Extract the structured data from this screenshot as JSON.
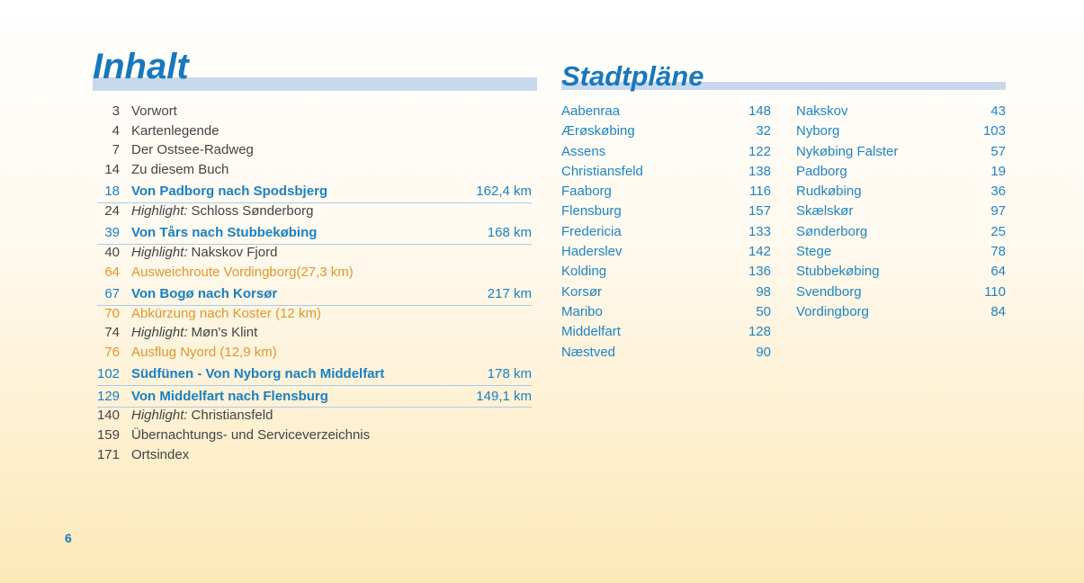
{
  "inhalt": {
    "title": "Inhalt",
    "entries": [
      {
        "page": 3,
        "text": "Vorwort"
      },
      {
        "page": 4,
        "text": "Kartenlegende"
      },
      {
        "page": 7,
        "text": "Der Ostsee-Radweg"
      },
      {
        "page": 14,
        "text": "Zu diesem Buch"
      },
      {
        "page": 18,
        "text": "Von Padborg nach Spodsbjerg",
        "distance": "162,4 km"
      },
      {
        "page": 24,
        "label": "Highlight:",
        "text": "Schloss Sønderborg"
      },
      {
        "page": 39,
        "text": "Von Tårs nach Stubbekøbing",
        "distance": "168 km"
      },
      {
        "page": 40,
        "label": "Highlight:",
        "text": "Nakskov Fjord"
      },
      {
        "page": 64,
        "text": "Ausweichroute Vordingborg(27,3 km)",
        "color": "#e0962c"
      },
      {
        "page": 67,
        "text": "Von Bogø nach Korsør",
        "distance": "217 km"
      },
      {
        "page": 70,
        "text": "Abkürzung nach Koster (12 km)",
        "color": "#e0962c"
      },
      {
        "page": 74,
        "label": "Highlight:",
        "text": "Møn's Klint"
      },
      {
        "page": 76,
        "text": "Ausflug Nyord (12,9 km)",
        "color": "#e0962c"
      },
      {
        "page": 102,
        "text": "Südfünen - Von Nyborg nach Middelfart",
        "distance": "178 km"
      },
      {
        "page": 129,
        "text": "Von Middelfart nach Flensburg",
        "distance": "149,1 km"
      },
      {
        "page": 140,
        "label": "Highlight:",
        "text": "Christiansfeld"
      },
      {
        "page": 159,
        "text": "Übernachtungs- und Serviceverzeichnis"
      },
      {
        "page": 171,
        "text": "Ortsindex"
      }
    ]
  },
  "stadtplaene": {
    "title": "Stadtpläne",
    "columns": [
      [
        {
          "name": "Aabenraa",
          "page": 148
        },
        {
          "name": "Ærøskøbing",
          "page": 32
        },
        {
          "name": "Assens",
          "page": 122
        },
        {
          "name": "Christiansfeld",
          "page": 138
        },
        {
          "name": "Faaborg",
          "page": 116
        },
        {
          "name": "Flensburg",
          "page": 157
        },
        {
          "name": "Fredericia",
          "page": 133
        },
        {
          "name": "Haderslev",
          "page": 142
        },
        {
          "name": "Kolding",
          "page": 136
        },
        {
          "name": "Korsør",
          "page": 98
        },
        {
          "name": "Maribo",
          "page": 50
        },
        {
          "name": "Middelfart",
          "page": 128
        },
        {
          "name": "Næstved",
          "page": 90
        }
      ],
      [
        {
          "name": "Nakskov",
          "page": 43
        },
        {
          "name": "Nyborg",
          "page": 103
        },
        {
          "name": "Nykøbing Falster",
          "page": 57
        },
        {
          "name": "Padborg",
          "page": 19
        },
        {
          "name": "Rudkøbing",
          "page": 36
        },
        {
          "name": "Skælskør",
          "page": 97
        },
        {
          "name": "Sønderborg",
          "page": 25
        },
        {
          "name": "Stege",
          "page": 78
        },
        {
          "name": "Stubbekøbing",
          "page": 64
        },
        {
          "name": "Svendborg",
          "page": 110
        },
        {
          "name": "Vordingborg",
          "page": 84
        }
      ]
    ]
  },
  "page_number": 6
}
